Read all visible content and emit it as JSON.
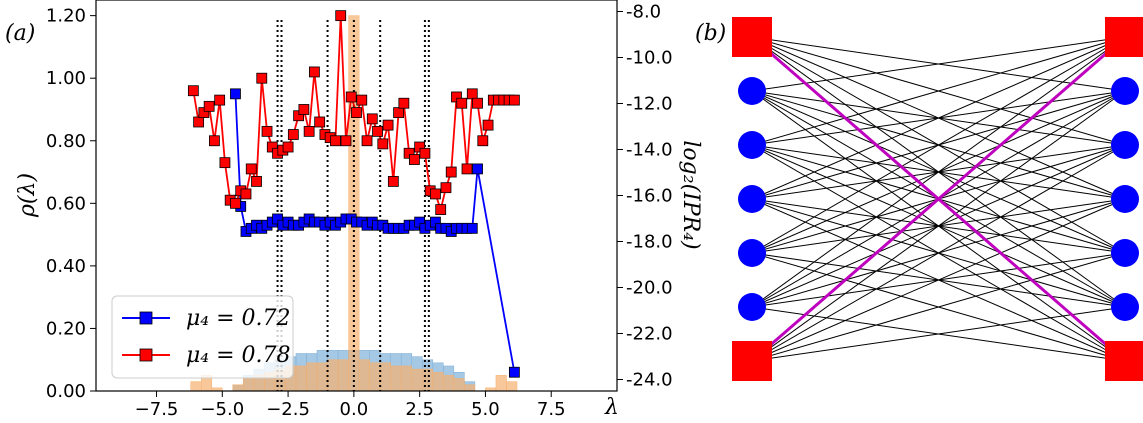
{
  "panel_a": {
    "tag": "(a)",
    "chart_data": {
      "type": "line",
      "xlabel": "λ",
      "ylabel_left": "ρ(λ)",
      "ylabel_right": "log₂(IPR₄)",
      "xlim": [
        -9.8,
        10.0
      ],
      "ylim_left": [
        0.0,
        1.25
      ],
      "ylim_right": [
        -24.5,
        -7.5
      ],
      "xticks": [
        -7.5,
        -5.0,
        -2.5,
        0.0,
        2.5,
        5.0,
        7.5
      ],
      "xtick_labels": [
        "−7.5",
        "−5.0",
        "−2.5",
        "0.0",
        "2.5",
        "5.0",
        "7.5"
      ],
      "yticks_left": [
        0.0,
        0.2,
        0.4,
        0.6,
        0.8,
        1.0,
        1.2
      ],
      "ytick_labels_left": [
        "0.00",
        "0.20",
        "0.40",
        "0.60",
        "0.80",
        "1.00",
        "1.20"
      ],
      "yticks_right": [
        -24,
        -22,
        -20,
        -18,
        -16,
        -14,
        -12,
        -10,
        -8
      ],
      "ytick_labels_right": [
        "-24.0",
        "-22.0",
        "-20.0",
        "-18.0",
        "-16.0",
        "-14.0",
        "-12.0",
        "-10.0",
        "-8.0"
      ],
      "vlines": [
        -2.9,
        -2.75,
        -1.0,
        0.0,
        1.0,
        2.7,
        2.85
      ],
      "legend_position": "lower-left",
      "series": [
        {
          "name": "μ₄ = 0.72",
          "color": "#0000ff",
          "axis": "left",
          "x": [
            -4.5,
            -4.3,
            -4.1,
            -3.9,
            -3.7,
            -3.5,
            -3.3,
            -3.1,
            -2.9,
            -2.7,
            -2.5,
            -2.3,
            -2.1,
            -1.9,
            -1.7,
            -1.5,
            -1.3,
            -1.1,
            -0.9,
            -0.7,
            -0.5,
            -0.3,
            -0.1,
            0.1,
            0.3,
            0.5,
            0.7,
            0.9,
            1.1,
            1.3,
            1.5,
            1.7,
            1.9,
            2.1,
            2.3,
            2.5,
            2.7,
            2.9,
            3.1,
            3.3,
            3.5,
            3.7,
            3.9,
            4.1,
            4.3,
            4.5,
            4.7,
            6.1
          ],
          "y": [
            0.95,
            0.59,
            0.51,
            0.52,
            0.53,
            0.52,
            0.53,
            0.54,
            0.55,
            0.53,
            0.54,
            0.53,
            0.53,
            0.54,
            0.55,
            0.54,
            0.54,
            0.53,
            0.54,
            0.53,
            0.54,
            0.55,
            0.55,
            0.54,
            0.54,
            0.53,
            0.54,
            0.53,
            0.53,
            0.52,
            0.52,
            0.52,
            0.52,
            0.53,
            0.53,
            0.54,
            0.52,
            0.53,
            0.54,
            0.52,
            0.52,
            0.51,
            0.52,
            0.52,
            0.52,
            0.52,
            0.71,
            0.06
          ]
        },
        {
          "name": "μ₄ = 0.78",
          "color": "#ff0000",
          "axis": "left",
          "x": [
            -6.1,
            -5.9,
            -5.7,
            -5.5,
            -5.3,
            -5.1,
            -4.9,
            -4.7,
            -4.5,
            -4.3,
            -4.1,
            -3.9,
            -3.7,
            -3.5,
            -3.3,
            -3.1,
            -2.9,
            -2.7,
            -2.5,
            -2.3,
            -2.1,
            -1.9,
            -1.7,
            -1.5,
            -1.3,
            -1.1,
            -0.9,
            -0.7,
            -0.5,
            -0.3,
            -0.1,
            0.1,
            0.3,
            0.5,
            0.7,
            0.9,
            1.1,
            1.3,
            1.5,
            1.7,
            1.9,
            2.1,
            2.3,
            2.5,
            2.7,
            2.9,
            3.1,
            3.3,
            3.5,
            3.7,
            3.9,
            4.1,
            4.3,
            4.5,
            4.7,
            4.9,
            5.1,
            5.3,
            5.5,
            5.7,
            5.9,
            6.1
          ],
          "y": [
            0.96,
            0.86,
            0.89,
            0.91,
            0.8,
            0.93,
            0.73,
            0.61,
            0.6,
            0.64,
            0.63,
            0.71,
            0.67,
            1.0,
            0.83,
            0.78,
            0.76,
            0.77,
            0.78,
            0.82,
            0.88,
            0.9,
            0.83,
            1.02,
            0.86,
            0.82,
            0.81,
            0.8,
            1.2,
            0.8,
            0.94,
            0.89,
            0.93,
            0.8,
            0.87,
            0.83,
            0.79,
            0.85,
            0.67,
            0.89,
            0.92,
            0.76,
            0.74,
            0.78,
            0.76,
            0.64,
            0.63,
            0.58,
            0.65,
            0.7,
            0.94,
            0.92,
            0.71,
            0.95,
            0.92,
            0.8,
            0.85,
            0.93,
            0.93,
            0.93,
            0.93,
            0.93
          ]
        }
      ],
      "histograms": [
        {
          "color": "#7fb0d8",
          "centers": [
            -6.0,
            -5.6,
            -5.2,
            -4.8,
            -4.4,
            -4.0,
            -3.6,
            -3.2,
            -2.8,
            -2.4,
            -2.0,
            -1.6,
            -1.2,
            -0.8,
            -0.4,
            0.0,
            0.4,
            0.8,
            1.2,
            1.6,
            2.0,
            2.4,
            2.8,
            3.2,
            3.6,
            4.0,
            4.4,
            4.8,
            5.2,
            5.6,
            6.0
          ],
          "heights": [
            0.0,
            0.0,
            0.0,
            0.0,
            0.02,
            0.05,
            0.07,
            0.09,
            0.1,
            0.11,
            0.12,
            0.12,
            0.13,
            0.13,
            0.13,
            0.13,
            0.13,
            0.13,
            0.12,
            0.12,
            0.12,
            0.11,
            0.1,
            0.09,
            0.08,
            0.06,
            0.03,
            0.0,
            0.0,
            0.0,
            0.0
          ]
        },
        {
          "color": "#f5b06f",
          "centers": [
            -6.0,
            -5.6,
            -5.2,
            -4.8,
            -4.4,
            -4.0,
            -3.6,
            -3.2,
            -2.8,
            -2.4,
            -2.0,
            -1.6,
            -1.2,
            -0.8,
            -0.4,
            0.0,
            0.4,
            0.8,
            1.2,
            1.6,
            2.0,
            2.4,
            2.8,
            3.2,
            3.6,
            4.0,
            4.4,
            4.8,
            5.2,
            5.6,
            6.0
          ],
          "heights": [
            0.03,
            0.05,
            0.01,
            0.0,
            0.02,
            0.04,
            0.05,
            0.06,
            0.07,
            0.08,
            0.08,
            0.09,
            0.09,
            0.1,
            0.1,
            1.2,
            0.1,
            0.09,
            0.09,
            0.08,
            0.08,
            0.07,
            0.07,
            0.06,
            0.05,
            0.04,
            0.02,
            0.0,
            0.01,
            0.05,
            0.03
          ]
        }
      ]
    }
  },
  "panel_b": {
    "tag": "(b)",
    "left_nodes": [
      "square",
      "circle",
      "circle",
      "circle",
      "circle",
      "circle",
      "square"
    ],
    "right_nodes": [
      "square",
      "circle",
      "circle",
      "circle",
      "circle",
      "circle",
      "square"
    ],
    "node_color": "#0000ff",
    "square_color": "#ff0000",
    "edge_color": "#000000",
    "highlight_color": "#bf00bf",
    "highlight_edges": [
      [
        0,
        6
      ],
      [
        6,
        0
      ]
    ]
  }
}
